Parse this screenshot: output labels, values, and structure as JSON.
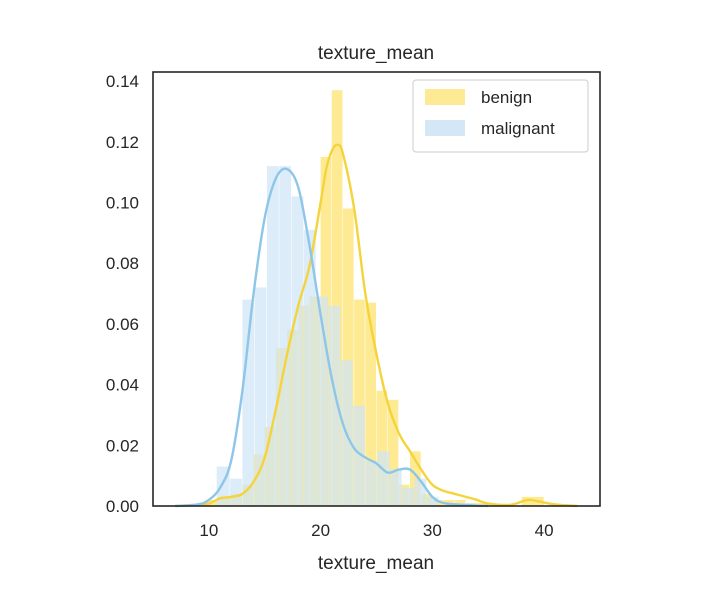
{
  "chart_data": {
    "type": "histogram",
    "title": "texture_mean",
    "xlabel": "texture_mean",
    "ylabel": "",
    "xlim": [
      5,
      45
    ],
    "ylim": [
      0,
      0.143
    ],
    "xticks": [
      10,
      20,
      30,
      40
    ],
    "yticks": [
      "0.00",
      "0.02",
      "0.04",
      "0.06",
      "0.08",
      "0.10",
      "0.12",
      "0.14"
    ],
    "grid": false,
    "legend_position": "upper right",
    "series": [
      {
        "name": "benign",
        "color": "#f5d33b",
        "bar_color": "#fde98d",
        "bins": [
          [
            9.7,
            11.0,
            0.002
          ],
          [
            11.0,
            12.0,
            0.003
          ],
          [
            12.0,
            13.0,
            0.004
          ],
          [
            13.0,
            14.0,
            0.007
          ],
          [
            14.0,
            15.0,
            0.017
          ],
          [
            15.0,
            16.0,
            0.026
          ],
          [
            16.0,
            17.0,
            0.052
          ],
          [
            17.0,
            18.0,
            0.058
          ],
          [
            18.0,
            19.0,
            0.066
          ],
          [
            19.0,
            20.0,
            0.069
          ],
          [
            20.0,
            21.0,
            0.115
          ],
          [
            21.0,
            22.0,
            0.137
          ],
          [
            22.0,
            23.0,
            0.098
          ],
          [
            23.0,
            24.0,
            0.068
          ],
          [
            24.0,
            25.0,
            0.067
          ],
          [
            25.0,
            26.0,
            0.038
          ],
          [
            26.0,
            27.0,
            0.035
          ],
          [
            27.0,
            28.0,
            0.007
          ],
          [
            28.0,
            29.0,
            0.018
          ],
          [
            29.0,
            30.0,
            0.004
          ],
          [
            30.0,
            31.0,
            0.002
          ],
          [
            31.0,
            32.0,
            0.002
          ],
          [
            32.0,
            33.0,
            0.002
          ],
          [
            33.0,
            34.0,
            0.001
          ],
          [
            34.0,
            35.0,
            0.001
          ],
          [
            38.0,
            40.0,
            0.003
          ]
        ],
        "kde": [
          [
            7,
            0.0
          ],
          [
            9,
            0.0003
          ],
          [
            10,
            0.0008
          ],
          [
            11,
            0.0025
          ],
          [
            12,
            0.003
          ],
          [
            13,
            0.004
          ],
          [
            14,
            0.008
          ],
          [
            15,
            0.016
          ],
          [
            16,
            0.032
          ],
          [
            17,
            0.05
          ],
          [
            18,
            0.066
          ],
          [
            19,
            0.079
          ],
          [
            20,
            0.1
          ],
          [
            20.5,
            0.111
          ],
          [
            21,
            0.117
          ],
          [
            21.5,
            0.119
          ],
          [
            22,
            0.116
          ],
          [
            23,
            0.098
          ],
          [
            24,
            0.07
          ],
          [
            25,
            0.05
          ],
          [
            26,
            0.034
          ],
          [
            27,
            0.024
          ],
          [
            28,
            0.018
          ],
          [
            29,
            0.012
          ],
          [
            30,
            0.007
          ],
          [
            31,
            0.005
          ],
          [
            32,
            0.004
          ],
          [
            33,
            0.003
          ],
          [
            34,
            0.002
          ],
          [
            35,
            0.0008
          ],
          [
            37,
            0.0004
          ],
          [
            38.5,
            0.002
          ],
          [
            39.5,
            0.0015
          ],
          [
            41,
            0.0005
          ],
          [
            43,
            0.0
          ]
        ]
      },
      {
        "name": "malignant",
        "color": "#8ec6ea",
        "bar_color": "#cfe4f5",
        "bins": [
          [
            10.7,
            11.9,
            0.013
          ],
          [
            11.9,
            13.0,
            0.009
          ],
          [
            13.0,
            14.1,
            0.068
          ],
          [
            14.1,
            15.2,
            0.072
          ],
          [
            15.2,
            16.3,
            0.112
          ],
          [
            16.3,
            17.4,
            0.112
          ],
          [
            17.4,
            18.5,
            0.102
          ],
          [
            18.5,
            19.6,
            0.091
          ],
          [
            19.6,
            20.7,
            0.069
          ],
          [
            20.7,
            21.8,
            0.066
          ],
          [
            21.8,
            22.9,
            0.048
          ],
          [
            22.9,
            24.0,
            0.033
          ],
          [
            24.0,
            25.1,
            0.015
          ],
          [
            25.1,
            26.2,
            0.018
          ],
          [
            26.2,
            27.3,
            0.012
          ],
          [
            27.3,
            28.4,
            0.006
          ],
          [
            28.4,
            29.5,
            0.009
          ],
          [
            29.5,
            30.6,
            0.003
          ],
          [
            30.6,
            31.7,
            0.0
          ],
          [
            31.7,
            32.8,
            0.001
          ],
          [
            32.8,
            33.9,
            0.001
          ]
        ],
        "kde": [
          [
            7,
            0.0
          ],
          [
            9,
            0.0005
          ],
          [
            10,
            0.002
          ],
          [
            11,
            0.006
          ],
          [
            12,
            0.015
          ],
          [
            13,
            0.038
          ],
          [
            14,
            0.07
          ],
          [
            15,
            0.095
          ],
          [
            16,
            0.108
          ],
          [
            17,
            0.111
          ],
          [
            18,
            0.105
          ],
          [
            19,
            0.086
          ],
          [
            20,
            0.063
          ],
          [
            21,
            0.042
          ],
          [
            22,
            0.027
          ],
          [
            23,
            0.019
          ],
          [
            24,
            0.016
          ],
          [
            25,
            0.014
          ],
          [
            26,
            0.011
          ],
          [
            27,
            0.012
          ],
          [
            28,
            0.012
          ],
          [
            29,
            0.008
          ],
          [
            30,
            0.003
          ],
          [
            31,
            0.001
          ],
          [
            33,
            0.0003
          ],
          [
            35,
            0.0
          ]
        ]
      }
    ]
  }
}
